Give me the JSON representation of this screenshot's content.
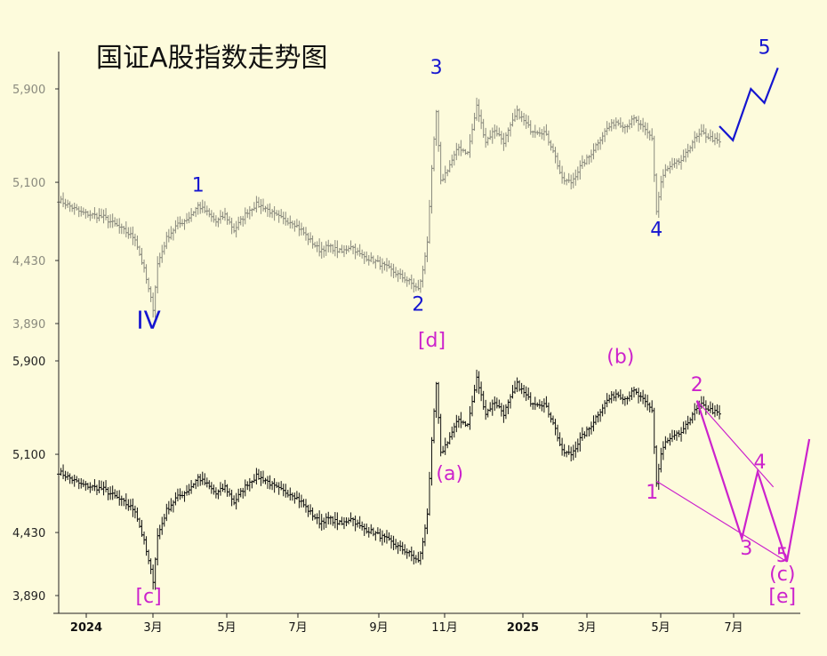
{
  "chart_data": {
    "type": "ohlc",
    "title": "国证A股指数走势图",
    "xlabel": "",
    "ylabel": "",
    "x_tick_labels": [
      "2024",
      "3月",
      "5月",
      "7月",
      "9月",
      "11月",
      "2025",
      "3月",
      "5月",
      "7月"
    ],
    "y_tick_labels": [
      "3,890",
      "4,430",
      "5,100",
      "5,900"
    ],
    "y_ticks": [
      3890,
      4430,
      5100,
      5900
    ],
    "ylim": [
      3750,
      6250
    ],
    "series": [
      {
        "values_approx_close": [
          [
            0,
            4950
          ],
          [
            10,
            4840
          ],
          [
            20,
            4800
          ],
          [
            28,
            4700
          ],
          [
            34,
            4620
          ],
          [
            38,
            4350
          ],
          [
            40,
            4180
          ],
          [
            42,
            4020
          ],
          [
            44,
            4400
          ],
          [
            48,
            4620
          ],
          [
            52,
            4720
          ],
          [
            58,
            4800
          ],
          [
            62,
            4900
          ],
          [
            66,
            4840
          ],
          [
            70,
            4760
          ],
          [
            74,
            4820
          ],
          [
            78,
            4690
          ],
          [
            84,
            4850
          ],
          [
            88,
            4910
          ],
          [
            92,
            4880
          ],
          [
            96,
            4820
          ],
          [
            100,
            4780
          ],
          [
            104,
            4760
          ],
          [
            108,
            4690
          ],
          [
            112,
            4600
          ],
          [
            116,
            4520
          ],
          [
            120,
            4550
          ],
          [
            126,
            4500
          ],
          [
            130,
            4560
          ],
          [
            134,
            4480
          ],
          [
            140,
            4430
          ],
          [
            146,
            4370
          ],
          [
            150,
            4320
          ],
          [
            156,
            4250
          ],
          [
            160,
            4180
          ],
          [
            162,
            4340
          ],
          [
            164,
            4600
          ],
          [
            166,
            5200
          ],
          [
            168,
            5700
          ],
          [
            170,
            5100
          ],
          [
            174,
            5250
          ],
          [
            178,
            5400
          ],
          [
            182,
            5350
          ],
          [
            186,
            5750
          ],
          [
            190,
            5450
          ],
          [
            194,
            5550
          ],
          [
            198,
            5450
          ],
          [
            204,
            5700
          ],
          [
            210,
            5550
          ],
          [
            216,
            5530
          ],
          [
            220,
            5380
          ],
          [
            224,
            5120
          ],
          [
            228,
            5100
          ],
          [
            232,
            5230
          ],
          [
            236,
            5320
          ],
          [
            240,
            5450
          ],
          [
            244,
            5560
          ],
          [
            248,
            5620
          ],
          [
            252,
            5580
          ],
          [
            256,
            5640
          ],
          [
            258,
            5600
          ],
          [
            262,
            5520
          ],
          [
            264,
            5480
          ],
          [
            266,
            4850
          ],
          [
            268,
            5100
          ],
          [
            270,
            5200
          ],
          [
            274,
            5250
          ],
          [
            278,
            5300
          ],
          [
            282,
            5450
          ],
          [
            286,
            5520
          ],
          [
            290,
            5480
          ],
          [
            294,
            5440
          ]
        ]
      }
    ],
    "projection": [
      [
        294,
        5580
      ],
      [
        300,
        5460
      ],
      [
        308,
        5900
      ],
      [
        314,
        5780
      ],
      [
        320,
        6080
      ]
    ],
    "annotations": [
      {
        "text": "IV",
        "at": [
          40,
          3850
        ],
        "color": "#1515d0"
      },
      {
        "text": "1",
        "at": [
          62,
          5020
        ],
        "color": "#1515d0"
      },
      {
        "text": "2",
        "at": [
          160,
          4000
        ],
        "color": "#1515d0"
      },
      {
        "text": "3",
        "at": [
          168,
          6030
        ],
        "color": "#1515d0"
      },
      {
        "text": "4",
        "at": [
          266,
          4640
        ],
        "color": "#1515d0"
      },
      {
        "text": "5",
        "at": [
          314,
          6200
        ],
        "color": "#1515d0"
      },
      {
        "text": "[c]",
        "at": [
          40,
          3830
        ],
        "color": "#cc22cc"
      },
      {
        "text": "[d]",
        "at": [
          166,
          6020
        ],
        "color": "#cc22cc"
      },
      {
        "text": "(a)",
        "at": [
          174,
          4880
        ],
        "color": "#cc22cc"
      },
      {
        "text": "(b)",
        "at": [
          250,
          5880
        ],
        "color": "#cc22cc"
      },
      {
        "text": "1",
        "at": [
          264,
          4720
        ],
        "color": "#cc22cc"
      },
      {
        "text": "2",
        "at": [
          284,
          5640
        ],
        "color": "#cc22cc"
      },
      {
        "text": "3",
        "at": [
          306,
          4240
        ],
        "color": "#cc22cc"
      },
      {
        "text": "4",
        "at": [
          312,
          4980
        ],
        "color": "#cc22cc"
      },
      {
        "text": "5",
        "at": [
          322,
          4180
        ],
        "color": "#cc22cc"
      },
      {
        "text": "(c)",
        "at": [
          322,
          4020
        ],
        "color": "#cc22cc"
      },
      {
        "text": "[e]",
        "at": [
          322,
          3830
        ],
        "color": "#cc22cc"
      }
    ],
    "colors": {
      "background": "#fdfbdc",
      "upper_bars": "#8a8a7e",
      "lower_bars": "#111111",
      "wave_blue": "#1515d0",
      "wave_magenta": "#cc22cc",
      "upper_y_labels": "#8a8a7e",
      "lower_y_labels": "#222222"
    },
    "grid": false,
    "legend": "none"
  }
}
